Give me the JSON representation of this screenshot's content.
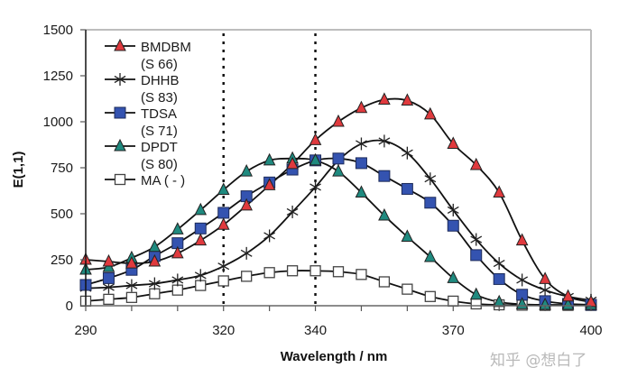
{
  "chart_data": {
    "type": "line",
    "title": "",
    "xlabel": "Wavelength / nm",
    "ylabel": "E(1,1)",
    "xlim": [
      290,
      400
    ],
    "ylim": [
      0,
      1500
    ],
    "x_ticks": [
      290,
      300,
      310,
      320,
      330,
      340,
      350,
      360,
      370,
      380,
      390,
      400
    ],
    "x_tick_labels": [
      {
        "value": 290,
        "label": "290"
      },
      {
        "value": 320,
        "label": "320"
      },
      {
        "value": 340,
        "label": "340"
      },
      {
        "value": 370,
        "label": "370"
      },
      {
        "value": 400,
        "label": "400"
      }
    ],
    "y_ticks": [
      {
        "value": 0,
        "label": "0"
      },
      {
        "value": 250,
        "label": "250"
      },
      {
        "value": 500,
        "label": "500"
      },
      {
        "value": 750,
        "label": "750"
      },
      {
        "value": 1000,
        "label": "1000"
      },
      {
        "value": 1250,
        "label": "1250"
      },
      {
        "value": 1500,
        "label": "1500"
      }
    ],
    "reference_lines": [
      320,
      340
    ],
    "grid": false,
    "legend_position": "top-left",
    "x": [
      290,
      295,
      300,
      305,
      310,
      315,
      320,
      325,
      330,
      335,
      340,
      345,
      350,
      355,
      360,
      365,
      370,
      375,
      380,
      385,
      390,
      395,
      400
    ],
    "series": [
      {
        "name": "BMDBM",
        "sub": "(S 66)",
        "marker": "triangle",
        "color": "#e03a3e",
        "values": [
          250,
          240,
          230,
          240,
          285,
          355,
          440,
          545,
          655,
          770,
          900,
          1000,
          1075,
          1120,
          1115,
          1040,
          880,
          765,
          615,
          355,
          145,
          50,
          20
        ]
      },
      {
        "name": "DHHB",
        "sub": "(S 83)",
        "marker": "star",
        "color": "#222222",
        "values": [
          95,
          100,
          110,
          120,
          140,
          165,
          215,
          285,
          380,
          510,
          645,
          790,
          880,
          895,
          830,
          690,
          520,
          360,
          230,
          140,
          85,
          50,
          30
        ]
      },
      {
        "name": "TDSA",
        "sub": "(S 71)",
        "marker": "square",
        "color": "#3453b0",
        "values": [
          113,
          150,
          195,
          270,
          340,
          420,
          505,
          595,
          670,
          740,
          790,
          800,
          775,
          705,
          635,
          560,
          435,
          275,
          145,
          60,
          25,
          10,
          5
        ]
      },
      {
        "name": "DPDT",
        "sub": "(S 80)",
        "marker": "triangle",
        "color": "#1f8a7f",
        "values": [
          196,
          210,
          260,
          320,
          415,
          520,
          630,
          730,
          790,
          800,
          790,
          730,
          615,
          490,
          375,
          265,
          150,
          60,
          20,
          8,
          5,
          5,
          5
        ]
      },
      {
        "name": "MA ( - )",
        "sub": "",
        "marker": "open-square",
        "color": "#ffffff",
        "values": [
          25,
          35,
          45,
          65,
          85,
          110,
          135,
          160,
          180,
          190,
          190,
          185,
          170,
          130,
          90,
          50,
          25,
          10,
          5,
          3,
          2,
          2,
          2
        ]
      }
    ]
  },
  "watermark": "知乎 @想白了"
}
